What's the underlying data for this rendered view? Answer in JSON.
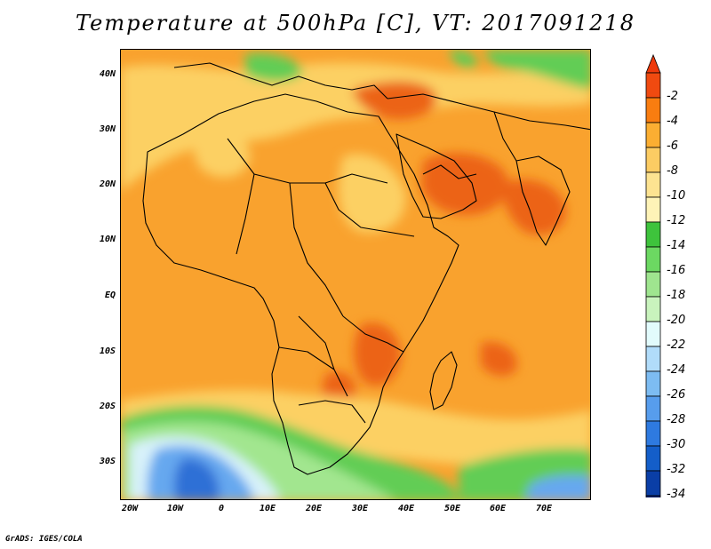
{
  "title": "Temperature at 500hPa [C], VT: 2017091218",
  "credit": "GrADS: IGES/COLA",
  "axes": {
    "lat_labels": [
      "40N",
      "30N",
      "20N",
      "10N",
      "EQ",
      "10S",
      "20S",
      "30S"
    ],
    "lon_labels": [
      "20W",
      "10W",
      "0",
      "10E",
      "20E",
      "30E",
      "40E",
      "50E",
      "60E",
      "70E"
    ]
  },
  "legend": {
    "labels": [
      "-2",
      "-4",
      "-6",
      "-8",
      "-10",
      "-12",
      "-14",
      "-16",
      "-18",
      "-20",
      "-22",
      "-24",
      "-26",
      "-28",
      "-30",
      "-32",
      "-34"
    ],
    "colors": [
      "#f04a10",
      "#f97d10",
      "#fbae32",
      "#fccc63",
      "#fde391",
      "#fef3b7",
      "#3ec33c",
      "#6cd862",
      "#9fe58f",
      "#c9f3bd",
      "#e2fbfc",
      "#b1dcfa",
      "#7dbcf2",
      "#579ded",
      "#2e7ae0",
      "#145ec9",
      "#0a3ea6",
      "#08206a"
    ],
    "top_arrow_color": "#ee3a0c",
    "bottom_arrow_color": "#e6e6f8"
  },
  "palette": {
    "warm_base": "#f9a22e",
    "warm_dark": "#ec6412",
    "light_band": "#fcd064",
    "green": "#62cd55",
    "light_green": "#a2e68f",
    "blue": "#66a8ef",
    "ice": "#d8f2fa"
  }
}
